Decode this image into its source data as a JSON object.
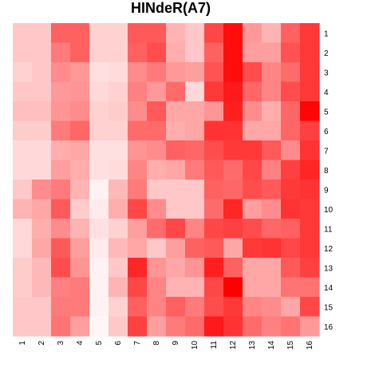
{
  "chart_data": {
    "type": "heatmap",
    "title": "HINdeR(A7)",
    "xlabel": "",
    "ylabel": "",
    "x_labels": [
      "1",
      "2",
      "3",
      "4",
      "5",
      "6",
      "7",
      "8",
      "9",
      "10",
      "11",
      "12",
      "13",
      "14",
      "15",
      "16"
    ],
    "y_labels": [
      "1",
      "2",
      "3",
      "4",
      "5",
      "6",
      "7",
      "8",
      "9",
      "10",
      "11",
      "12",
      "13",
      "14",
      "15",
      "16"
    ],
    "color_scale": {
      "low": "#ffffff",
      "high": "#ff0000"
    },
    "value_range": [
      0,
      1
    ],
    "legend": "none",
    "grid": false,
    "matrix": [
      [
        0.22,
        0.22,
        0.62,
        0.62,
        0.18,
        0.18,
        0.65,
        0.65,
        0.3,
        0.22,
        0.72,
        0.95,
        0.4,
        0.3,
        0.62,
        0.78
      ],
      [
        0.22,
        0.22,
        0.52,
        0.62,
        0.18,
        0.18,
        0.62,
        0.7,
        0.32,
        0.22,
        0.62,
        0.95,
        0.38,
        0.38,
        0.68,
        0.78
      ],
      [
        0.18,
        0.22,
        0.45,
        0.4,
        0.12,
        0.14,
        0.45,
        0.52,
        0.4,
        0.38,
        0.68,
        0.95,
        0.7,
        0.48,
        0.58,
        0.78
      ],
      [
        0.22,
        0.22,
        0.4,
        0.42,
        0.15,
        0.18,
        0.5,
        0.4,
        0.58,
        0.15,
        0.78,
        0.9,
        0.6,
        0.48,
        0.7,
        0.78
      ],
      [
        0.25,
        0.25,
        0.42,
        0.45,
        0.18,
        0.2,
        0.45,
        0.65,
        0.35,
        0.35,
        0.42,
        0.88,
        0.45,
        0.32,
        0.6,
        0.98
      ],
      [
        0.2,
        0.2,
        0.52,
        0.6,
        0.18,
        0.18,
        0.58,
        0.58,
        0.32,
        0.35,
        0.8,
        0.8,
        0.35,
        0.35,
        0.6,
        0.75
      ],
      [
        0.15,
        0.15,
        0.32,
        0.35,
        0.12,
        0.12,
        0.42,
        0.45,
        0.62,
        0.6,
        0.7,
        0.78,
        0.78,
        0.65,
        0.45,
        0.8
      ],
      [
        0.15,
        0.15,
        0.38,
        0.32,
        0.12,
        0.14,
        0.48,
        0.32,
        0.35,
        0.52,
        0.65,
        0.58,
        0.72,
        0.5,
        0.75,
        0.85
      ],
      [
        0.22,
        0.45,
        0.52,
        0.3,
        0.05,
        0.28,
        0.52,
        0.22,
        0.22,
        0.22,
        0.62,
        0.6,
        0.7,
        0.65,
        0.78,
        0.8
      ],
      [
        0.3,
        0.35,
        0.65,
        0.2,
        0.08,
        0.32,
        0.72,
        0.45,
        0.22,
        0.22,
        0.58,
        0.85,
        0.38,
        0.45,
        0.8,
        0.78
      ],
      [
        0.15,
        0.32,
        0.45,
        0.3,
        0.12,
        0.18,
        0.38,
        0.58,
        0.72,
        0.48,
        0.72,
        0.75,
        0.7,
        0.6,
        0.62,
        0.78
      ],
      [
        0.15,
        0.35,
        0.65,
        0.38,
        0.08,
        0.28,
        0.35,
        0.22,
        0.38,
        0.62,
        0.65,
        0.35,
        0.78,
        0.8,
        0.72,
        0.78
      ],
      [
        0.2,
        0.28,
        0.7,
        0.42,
        0.05,
        0.22,
        0.85,
        0.42,
        0.35,
        0.42,
        0.88,
        0.62,
        0.35,
        0.35,
        0.65,
        0.75
      ],
      [
        0.2,
        0.28,
        0.5,
        0.52,
        0.05,
        0.3,
        0.72,
        0.48,
        0.3,
        0.3,
        0.72,
        1.0,
        0.35,
        0.35,
        0.55,
        0.55
      ],
      [
        0.22,
        0.22,
        0.52,
        0.52,
        0.05,
        0.18,
        0.62,
        0.48,
        0.62,
        0.52,
        0.7,
        0.78,
        0.48,
        0.45,
        0.35,
        0.72
      ],
      [
        0.22,
        0.22,
        0.55,
        0.38,
        0.03,
        0.22,
        0.75,
        0.38,
        0.52,
        0.58,
        0.9,
        0.8,
        0.58,
        0.5,
        0.55,
        0.4
      ]
    ]
  }
}
